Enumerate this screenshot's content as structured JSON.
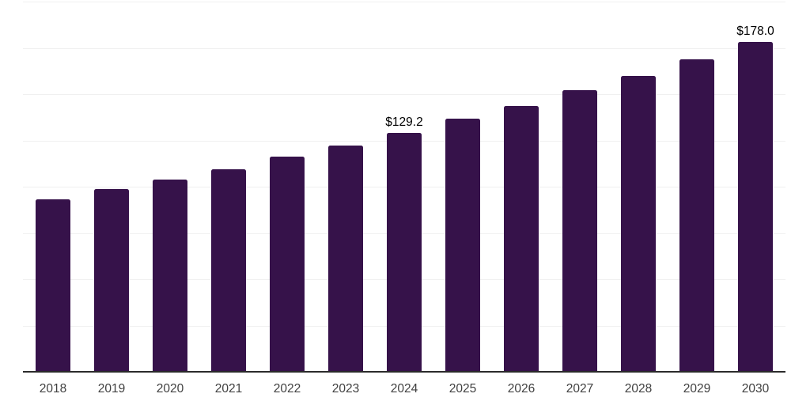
{
  "chart_data": {
    "type": "bar",
    "title": "",
    "xlabel": "",
    "ylabel": "",
    "categories": [
      "2018",
      "2019",
      "2020",
      "2021",
      "2022",
      "2023",
      "2024",
      "2025",
      "2026",
      "2027",
      "2028",
      "2029",
      "2030"
    ],
    "values": [
      93.2,
      98.7,
      103.9,
      109.4,
      116.2,
      122.2,
      129.2,
      136.7,
      143.5,
      152.0,
      159.7,
      168.6,
      178.0
    ],
    "bar_labels": [
      "",
      "",
      "",
      "",
      "",
      "",
      "$129.2",
      "",
      "",
      "",
      "",
      "",
      "$178.0"
    ],
    "ylim": [
      0,
      200
    ],
    "gridline_interval": 25,
    "grid": true,
    "y_tick_labels_shown": false,
    "legend_position": "none",
    "colors": {
      "bar": "#36124A",
      "gridline": "#f0f0f0",
      "axis_line": "#2b2b2b",
      "x_tick_label": "#404040",
      "data_label": "#000000",
      "background": "#ffffff"
    }
  }
}
